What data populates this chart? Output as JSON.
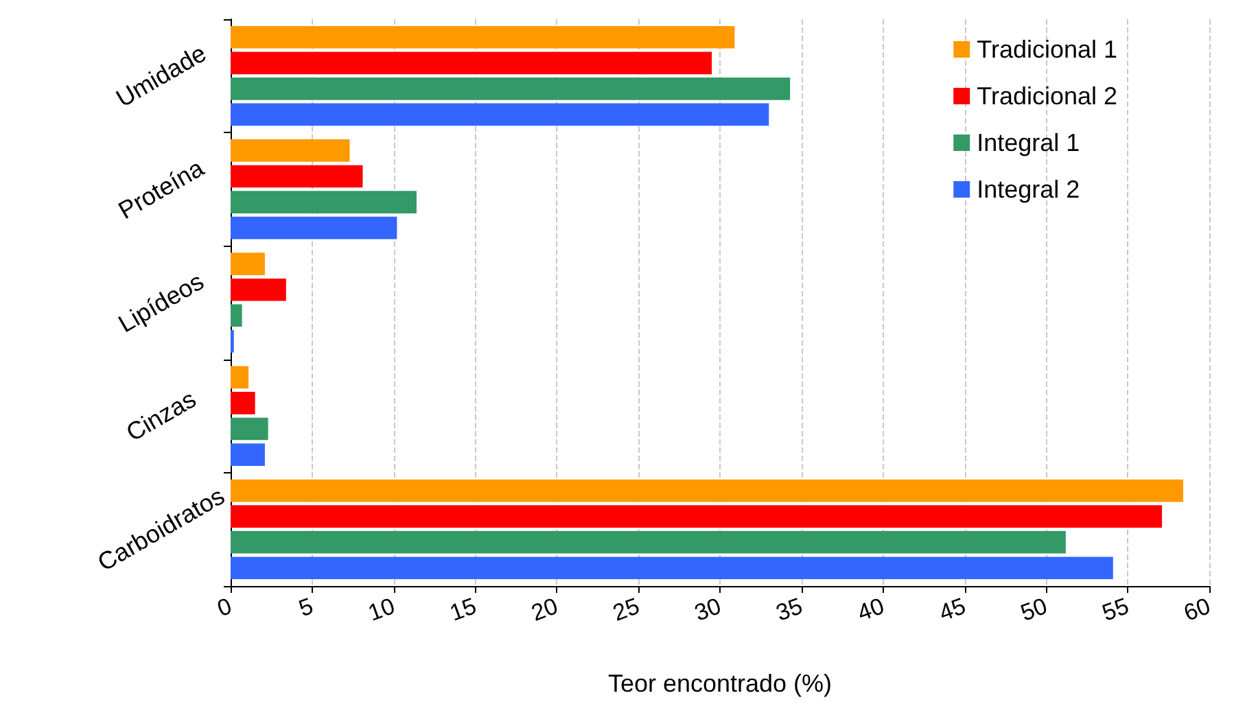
{
  "chart_data": {
    "type": "bar",
    "orientation": "horizontal",
    "xlabel": "Teor encontrado (%)",
    "categories": [
      "Umidade",
      "Proteína",
      "Lipídeos",
      "Cinzas",
      "Carboidratos"
    ],
    "series": [
      {
        "name": "Tradicional 1",
        "color": "#ff9900",
        "values": [
          30.9,
          7.3,
          2.1,
          1.1,
          58.4
        ]
      },
      {
        "name": "Tradicional 2",
        "color": "#ff0000",
        "values": [
          29.5,
          8.1,
          3.4,
          1.5,
          57.1
        ]
      },
      {
        "name": "Integral 1",
        "color": "#339966",
        "values": [
          34.3,
          11.4,
          0.7,
          2.3,
          51.2
        ]
      },
      {
        "name": "Integral 2",
        "color": "#3366ff",
        "values": [
          33.0,
          10.2,
          0.2,
          2.1,
          54.1
        ]
      }
    ],
    "xlim": [
      0,
      60
    ],
    "xticks": [
      0,
      5,
      10,
      15,
      20,
      25,
      30,
      35,
      40,
      45,
      50,
      55,
      60
    ],
    "grid": "x",
    "legend": "top right"
  }
}
